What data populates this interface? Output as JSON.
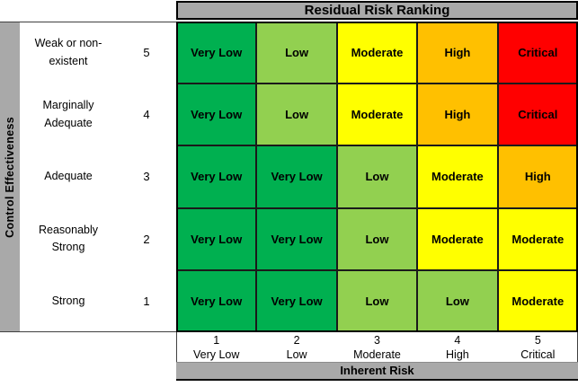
{
  "title": "Residual Risk Ranking",
  "y_axis": {
    "title": "Control Effectiveness",
    "rows": [
      {
        "label": "Weak or non-existent",
        "value": 5
      },
      {
        "label": "Marginally Adequate",
        "value": 4
      },
      {
        "label": "Adequate",
        "value": 3
      },
      {
        "label": "Reasonably Strong",
        "value": 2
      },
      {
        "label": "Strong",
        "value": 1
      }
    ]
  },
  "x_axis": {
    "title": "Inherent Risk",
    "cols": [
      {
        "value": 1,
        "label": "Very Low"
      },
      {
        "value": 2,
        "label": "Low"
      },
      {
        "value": 3,
        "label": "Moderate"
      },
      {
        "value": 4,
        "label": "High"
      },
      {
        "value": 5,
        "label": "Critical"
      }
    ]
  },
  "chart_data": {
    "type": "heatmap",
    "title": "Residual Risk Ranking",
    "xlabel": "Inherent Risk",
    "ylabel": "Control Effectiveness",
    "x_categories": [
      "1 Very Low",
      "2 Low",
      "3 Moderate",
      "4 High",
      "5 Critical"
    ],
    "y_categories": [
      "5 Weak or non-existent",
      "4 Marginally Adequate",
      "3 Adequate",
      "2 Reasonably Strong",
      "1 Strong"
    ],
    "values": [
      [
        "Very Low",
        "Low",
        "Moderate",
        "High",
        "Critical"
      ],
      [
        "Very Low",
        "Low",
        "Moderate",
        "High",
        "Critical"
      ],
      [
        "Very Low",
        "Very Low",
        "Low",
        "Moderate",
        "High"
      ],
      [
        "Very Low",
        "Very Low",
        "Low",
        "Moderate",
        "Moderate"
      ],
      [
        "Very Low",
        "Very Low",
        "Low",
        "Low",
        "Moderate"
      ]
    ],
    "legend": "none",
    "grid": true
  },
  "colors": {
    "Very Low": "#00B050",
    "Low": "#92D050",
    "Moderate": "#FFFF00",
    "High": "#FFC000",
    "Critical": "#FF0000",
    "panel_gray": "#A9A9A9"
  }
}
